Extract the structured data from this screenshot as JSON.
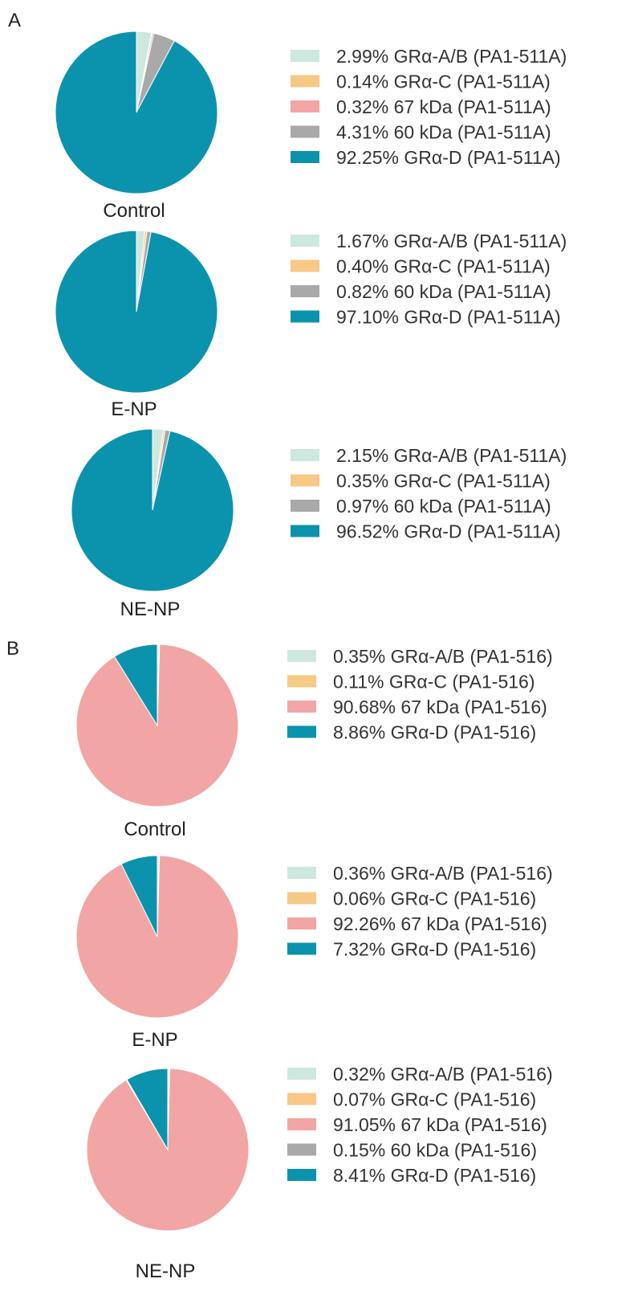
{
  "panels": [
    {
      "label": "A"
    },
    {
      "label": "B"
    }
  ],
  "colors": {
    "gr_ab": "#cde8de",
    "gr_c": "#f7c886",
    "kda67": "#f2a5a5",
    "kda60": "#a9a9a9",
    "gr_d": "#0b93ae"
  },
  "chart_data": [
    {
      "type": "pie",
      "panel": "A",
      "caption": "Control",
      "slices": [
        {
          "value": 2.99,
          "color_key": "gr_ab",
          "legend": "2.99% GRα-A/B (PA1-511A)"
        },
        {
          "value": 0.14,
          "color_key": "gr_c",
          "legend": "0.14% GRα-C (PA1-511A)"
        },
        {
          "value": 0.32,
          "color_key": "kda67",
          "legend": "0.32% 67 kDa (PA1-511A)"
        },
        {
          "value": 4.31,
          "color_key": "kda60",
          "legend": "4.31% 60 kDa (PA1-511A)"
        },
        {
          "value": 92.25,
          "color_key": "gr_d",
          "legend": "92.25% GRα-D (PA1-511A)"
        }
      ]
    },
    {
      "type": "pie",
      "panel": "A",
      "caption": "E-NP",
      "slices": [
        {
          "value": 1.67,
          "color_key": "gr_ab",
          "legend": "1.67% GRα-A/B (PA1-511A)"
        },
        {
          "value": 0.4,
          "color_key": "gr_c",
          "legend": "0.40% GRα-C (PA1-511A)"
        },
        {
          "value": 0.82,
          "color_key": "kda60",
          "legend": "0.82% 60 kDa (PA1-511A)"
        },
        {
          "value": 97.1,
          "color_key": "gr_d",
          "legend": "97.10% GRα-D (PA1-511A)"
        }
      ]
    },
    {
      "type": "pie",
      "panel": "A",
      "caption": "NE-NP",
      "slices": [
        {
          "value": 2.15,
          "color_key": "gr_ab",
          "legend": "2.15% GRα-A/B (PA1-511A)"
        },
        {
          "value": 0.35,
          "color_key": "gr_c",
          "legend": "0.35% GRα-C (PA1-511A)"
        },
        {
          "value": 0.97,
          "color_key": "kda60",
          "legend": "0.97% 60 kDa (PA1-511A)"
        },
        {
          "value": 96.52,
          "color_key": "gr_d",
          "legend": "96.52% GRα-D (PA1-511A)"
        }
      ]
    },
    {
      "type": "pie",
      "panel": "B",
      "caption": "Control",
      "slices": [
        {
          "value": 0.35,
          "color_key": "gr_ab",
          "legend": "0.35% GRα-A/B (PA1-516)"
        },
        {
          "value": 0.11,
          "color_key": "gr_c",
          "legend": "0.11% GRα-C (PA1-516)"
        },
        {
          "value": 90.68,
          "color_key": "kda67",
          "legend": "90.68% 67 kDa (PA1-516)"
        },
        {
          "value": 8.86,
          "color_key": "gr_d",
          "legend": "8.86% GRα-D (PA1-516)"
        }
      ]
    },
    {
      "type": "pie",
      "panel": "B",
      "caption": "E-NP",
      "slices": [
        {
          "value": 0.36,
          "color_key": "gr_ab",
          "legend": "0.36% GRα-A/B (PA1-516)"
        },
        {
          "value": 0.06,
          "color_key": "gr_c",
          "legend": "0.06% GRα-C (PA1-516)"
        },
        {
          "value": 92.26,
          "color_key": "kda67",
          "legend": "92.26% 67 kDa (PA1-516)"
        },
        {
          "value": 7.32,
          "color_key": "gr_d",
          "legend": "7.32% GRα-D (PA1-516)"
        }
      ]
    },
    {
      "type": "pie",
      "panel": "B",
      "caption": "NE-NP",
      "slices": [
        {
          "value": 0.32,
          "color_key": "gr_ab",
          "legend": "0.32% GRα-A/B (PA1-516)"
        },
        {
          "value": 0.07,
          "color_key": "gr_c",
          "legend": "0.07% GRα-C (PA1-516)"
        },
        {
          "value": 91.05,
          "color_key": "kda67",
          "legend": "91.05% 67 kDa (PA1-516)"
        },
        {
          "value": 0.15,
          "color_key": "kda60",
          "legend": "0.15% 60 kDa (PA1-516)"
        },
        {
          "value": 8.41,
          "color_key": "gr_d",
          "legend": "8.41% GRα-D (PA1-516)"
        }
      ]
    }
  ]
}
